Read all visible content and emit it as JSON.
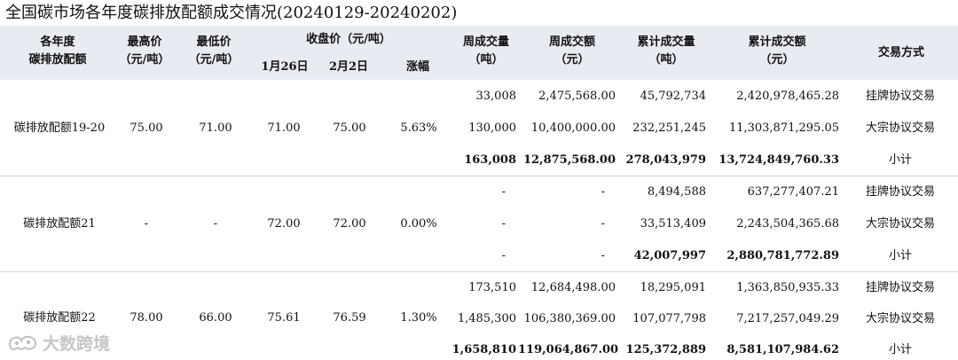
{
  "title": "全国碳市场各年度碳排放配额成交情况(20240129-20240202)",
  "header": {
    "variety": "各年度\n碳排放配额",
    "max_price": "最高价\n（元/吨）",
    "min_price": "最低价\n（元/吨）",
    "close_price": "收盘价（元/吨）",
    "date1": "1月26日",
    "date2": "2月2日",
    "change": "涨幅",
    "week_volume": "周成交量\n（吨）",
    "week_amount": "周成交额\n（元）",
    "cum_volume": "累计成交量\n（吨）",
    "cum_amount": "累计成交额\n（元）",
    "method": "交易方式"
  },
  "groups": [
    {
      "name": "碳排放配额19-20",
      "max_price": "75.00",
      "min_price": "71.00",
      "close1": "71.00",
      "close2": "75.00",
      "change": "5.63%",
      "rows": [
        {
          "week_volume": "33,008",
          "week_amount": "2,475,568.00",
          "cum_volume": "45,792,734",
          "cum_amount": "2,420,978,465.28",
          "method": "挂牌协议交易"
        },
        {
          "week_volume": "130,000",
          "week_amount": "10,400,000.00",
          "cum_volume": "232,251,245",
          "cum_amount": "11,303,871,295.05",
          "method": "大宗协议交易"
        },
        {
          "week_volume": "163,008",
          "week_amount": "12,875,568.00",
          "cum_volume": "278,043,979",
          "cum_amount": "13,724,849,760.33",
          "method": "小计"
        }
      ]
    },
    {
      "name": "碳排放配额21",
      "max_price": "-",
      "min_price": "-",
      "close1": "72.00",
      "close2": "72.00",
      "change": "0.00%",
      "rows": [
        {
          "week_volume": "-",
          "week_amount": "-",
          "cum_volume": "8,494,588",
          "cum_amount": "637,277,407.21",
          "method": "挂牌协议交易"
        },
        {
          "week_volume": "-",
          "week_amount": "-",
          "cum_volume": "33,513,409",
          "cum_amount": "2,243,504,365.68",
          "method": "大宗协议交易"
        },
        {
          "week_volume": "-",
          "week_amount": "-",
          "cum_volume": "42,007,997",
          "cum_amount": "2,880,781,772.89",
          "method": "小计"
        }
      ]
    },
    {
      "name": "碳排放配额22",
      "max_price": "78.00",
      "min_price": "66.00",
      "close1": "75.61",
      "close2": "76.59",
      "change": "1.30%",
      "rows": [
        {
          "week_volume": "173,510",
          "week_amount": "12,684,498.00",
          "cum_volume": "18,295,091",
          "cum_amount": "1,363,850,935.33",
          "method": "挂牌协议交易"
        },
        {
          "week_volume": "1,485,300",
          "week_amount": "106,380,369.00",
          "cum_volume": "107,077,798",
          "cum_amount": "7,217,257,049.29",
          "method": "大宗协议交易"
        },
        {
          "week_volume": "1,658,810",
          "week_amount": "119,064,867.00",
          "cum_volume": "125,372,889",
          "cum_amount": "8,581,107,984.62",
          "method": "小计"
        }
      ]
    }
  ],
  "watermark": "大数跨境"
}
